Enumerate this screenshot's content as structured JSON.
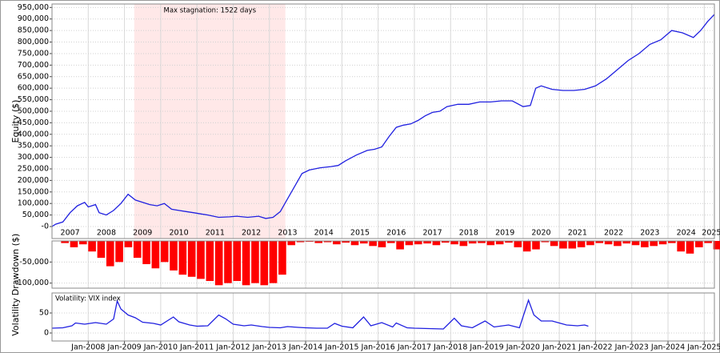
{
  "chart_data": [
    {
      "type": "line",
      "y_label": "Equity ($)",
      "annotation": "Max stagnation: 1522 days",
      "highlight_x": [
        2009.27,
        2013.44
      ],
      "highlight_color": "#ffe8e8",
      "color": "#2020e0",
      "x": [
        2007.0,
        2007.1,
        2007.3,
        2007.5,
        2007.7,
        2007.9,
        2008.0,
        2008.2,
        2008.3,
        2008.5,
        2008.7,
        2008.9,
        2009.1,
        2009.3,
        2009.5,
        2009.7,
        2009.9,
        2010.1,
        2010.3,
        2010.5,
        2010.7,
        2010.9,
        2011.1,
        2011.3,
        2011.6,
        2011.9,
        2012.1,
        2012.4,
        2012.7,
        2012.9,
        2013.1,
        2013.3,
        2013.5,
        2013.7,
        2013.9,
        2014.1,
        2014.4,
        2014.7,
        2014.9,
        2015.1,
        2015.4,
        2015.7,
        2015.9,
        2016.1,
        2016.3,
        2016.5,
        2016.7,
        2016.9,
        2017.1,
        2017.3,
        2017.5,
        2017.7,
        2017.9,
        2018.2,
        2018.5,
        2018.8,
        2019.1,
        2019.4,
        2019.7,
        2020.0,
        2020.2,
        2020.35,
        2020.5,
        2020.8,
        2021.1,
        2021.4,
        2021.7,
        2022.0,
        2022.3,
        2022.6,
        2022.9,
        2023.2,
        2023.5,
        2023.8,
        2024.1,
        2024.4,
        2024.7,
        2024.9,
        2025.1,
        2025.28
      ],
      "values": [
        0,
        10000,
        20000,
        60000,
        90000,
        105000,
        85000,
        95000,
        60000,
        50000,
        70000,
        100000,
        140000,
        115000,
        105000,
        95000,
        90000,
        100000,
        75000,
        70000,
        65000,
        60000,
        55000,
        50000,
        40000,
        42000,
        45000,
        40000,
        45000,
        35000,
        40000,
        65000,
        120000,
        175000,
        230000,
        245000,
        255000,
        260000,
        265000,
        285000,
        310000,
        330000,
        335000,
        345000,
        390000,
        430000,
        440000,
        445000,
        460000,
        480000,
        495000,
        500000,
        520000,
        530000,
        530000,
        540000,
        540000,
        545000,
        545000,
        520000,
        525000,
        600000,
        610000,
        595000,
        590000,
        590000,
        595000,
        610000,
        640000,
        680000,
        720000,
        750000,
        790000,
        810000,
        850000,
        840000,
        820000,
        850000,
        890000,
        920000
      ],
      "xlim": [
        2007.0,
        2025.28
      ],
      "ylim": [
        -52000,
        965000
      ],
      "xticks": [
        {
          "value": 2007.5,
          "label": "2007"
        },
        {
          "value": 2008.5,
          "label": "2008"
        },
        {
          "value": 2009.5,
          "label": "2009"
        },
        {
          "value": 2010.5,
          "label": "2010"
        },
        {
          "value": 2011.5,
          "label": "2011"
        },
        {
          "value": 2012.5,
          "label": "2012"
        },
        {
          "value": 2013.5,
          "label": "2013"
        },
        {
          "value": 2014.5,
          "label": "2014"
        },
        {
          "value": 2015.5,
          "label": "2015"
        },
        {
          "value": 2016.5,
          "label": "2016"
        },
        {
          "value": 2017.5,
          "label": "2017"
        },
        {
          "value": 2018.5,
          "label": "2018"
        },
        {
          "value": 2019.5,
          "label": "2019"
        },
        {
          "value": 2020.5,
          "label": "2020"
        },
        {
          "value": 2021.5,
          "label": "2021"
        },
        {
          "value": 2022.5,
          "label": "2022"
        },
        {
          "value": 2023.5,
          "label": "2023"
        },
        {
          "value": 2024.5,
          "label": "2024"
        },
        {
          "value": 2025.2,
          "label": "2025"
        }
      ],
      "yticks": [
        {
          "value": 0,
          "label": "-0"
        },
        {
          "value": 50000,
          "label": "50,000"
        },
        {
          "value": 100000,
          "label": "100,000"
        },
        {
          "value": 150000,
          "label": "150,000"
        },
        {
          "value": 200000,
          "label": "200,000"
        },
        {
          "value": 250000,
          "label": "250,000"
        },
        {
          "value": 300000,
          "label": "300,000"
        },
        {
          "value": 350000,
          "label": "350,000"
        },
        {
          "value": 400000,
          "label": "400,000"
        },
        {
          "value": 450000,
          "label": "450,000"
        },
        {
          "value": 500000,
          "label": "500,000"
        },
        {
          "value": 550000,
          "label": "550,000"
        },
        {
          "value": 600000,
          "label": "600,000"
        },
        {
          "value": 650000,
          "label": "650,000"
        },
        {
          "value": 700000,
          "label": "700,000"
        },
        {
          "value": 750000,
          "label": "750,000"
        },
        {
          "value": 800000,
          "label": "800,000"
        },
        {
          "value": 850000,
          "label": "850,000"
        },
        {
          "value": 900000,
          "label": "900,000"
        },
        {
          "value": 950000,
          "label": "950,000"
        }
      ]
    },
    {
      "type": "bar",
      "y_label": "Drawdown ($)",
      "color": "#ff0000",
      "x": [
        2007.0,
        2007.25,
        2007.5,
        2007.75,
        2008.0,
        2008.25,
        2008.5,
        2008.75,
        2009.0,
        2009.25,
        2009.5,
        2009.75,
        2010.0,
        2010.25,
        2010.5,
        2010.75,
        2011.0,
        2011.25,
        2011.5,
        2011.75,
        2012.0,
        2012.25,
        2012.5,
        2012.75,
        2013.0,
        2013.25,
        2013.5,
        2013.75,
        2014.0,
        2014.25,
        2014.5,
        2014.75,
        2015.0,
        2015.25,
        2015.5,
        2015.75,
        2016.0,
        2016.25,
        2016.5,
        2016.75,
        2017.0,
        2017.25,
        2017.5,
        2017.75,
        2018.0,
        2018.25,
        2018.5,
        2018.75,
        2019.0,
        2019.25,
        2019.5,
        2019.75,
        2020.0,
        2020.25,
        2020.5,
        2020.75,
        2021.0,
        2021.25,
        2021.5,
        2021.75,
        2022.0,
        2022.25,
        2022.5,
        2022.75,
        2023.0,
        2023.25,
        2023.5,
        2023.75,
        2024.0,
        2024.25,
        2024.5,
        2024.75,
        2025.0,
        2025.25
      ],
      "values": [
        0,
        -5000,
        -15000,
        -8000,
        -25000,
        -40000,
        -60000,
        -50000,
        -15000,
        -40000,
        -55000,
        -65000,
        -50000,
        -70000,
        -80000,
        -85000,
        -90000,
        -95000,
        -105000,
        -100000,
        -95000,
        -105000,
        -100000,
        -105000,
        -100000,
        -80000,
        -10000,
        -3000,
        -2000,
        -5000,
        -3000,
        -8000,
        -4000,
        -10000,
        -6000,
        -12000,
        -15000,
        -5000,
        -20000,
        -10000,
        -8000,
        -6000,
        -10000,
        -4000,
        -8000,
        -12000,
        -6000,
        -5000,
        -10000,
        -8000,
        -4000,
        -15000,
        -25000,
        -20000,
        -3000,
        -12000,
        -18000,
        -18000,
        -15000,
        -10000,
        -5000,
        -8000,
        -12000,
        -6000,
        -10000,
        -15000,
        -12000,
        -8000,
        -5000,
        -25000,
        -30000,
        -15000,
        -5000,
        -20000
      ],
      "xlim": [
        2007.0,
        2025.28
      ],
      "ylim": [
        -112000,
        0
      ],
      "yticks": [
        {
          "value": -50000,
          "label": "-50,000"
        },
        {
          "value": -100000,
          "label": "-100,000"
        }
      ]
    },
    {
      "type": "line",
      "y_label": "Volatility",
      "annotation": "Volatility: VIX index",
      "color": "#2020e0",
      "x": [
        2007.0,
        2007.3,
        2007.55,
        2007.65,
        2007.9,
        2008.2,
        2008.5,
        2008.7,
        2008.8,
        2008.9,
        2009.1,
        2009.3,
        2009.5,
        2009.8,
        2010.0,
        2010.35,
        2010.5,
        2010.8,
        2011.0,
        2011.3,
        2011.6,
        2011.8,
        2012.0,
        2012.3,
        2012.5,
        2012.8,
        2013.0,
        2013.3,
        2013.5,
        2013.8,
        2014.0,
        2014.3,
        2014.6,
        2014.8,
        2015.0,
        2015.3,
        2015.6,
        2015.8,
        2016.1,
        2016.4,
        2016.5,
        2016.8,
        2017.0,
        2017.4,
        2017.8,
        2018.1,
        2018.3,
        2018.6,
        2018.95,
        2019.2,
        2019.6,
        2019.9,
        2020.15,
        2020.3,
        2020.5,
        2020.8,
        2021.0,
        2021.2,
        2021.5,
        2021.7,
        2021.8
      ],
      "values": [
        12,
        13,
        18,
        25,
        22,
        26,
        22,
        35,
        80,
        60,
        45,
        38,
        27,
        24,
        20,
        40,
        28,
        20,
        17,
        18,
        45,
        35,
        22,
        18,
        20,
        16,
        14,
        13,
        16,
        14,
        13,
        12,
        12,
        24,
        17,
        13,
        40,
        18,
        26,
        15,
        25,
        13,
        12,
        11,
        10,
        37,
        18,
        13,
        30,
        15,
        20,
        13,
        82,
        45,
        30,
        30,
        25,
        20,
        18,
        20,
        17
      ],
      "xlim": [
        2007.0,
        2025.28
      ],
      "ylim": [
        -20,
        100
      ],
      "yticks": [
        0,
        50
      ],
      "xticks": [
        {
          "value": 2008,
          "label": "Jan-2008"
        },
        {
          "value": 2009,
          "label": "Jan-2009"
        },
        {
          "value": 2010,
          "label": "Jan-2010"
        },
        {
          "value": 2011,
          "label": "Jan-2011"
        },
        {
          "value": 2012,
          "label": "Jan-2012"
        },
        {
          "value": 2013,
          "label": "Jan-2013"
        },
        {
          "value": 2014,
          "label": "Jan-2014"
        },
        {
          "value": 2015,
          "label": "Jan-2015"
        },
        {
          "value": 2016,
          "label": "Jan-2016"
        },
        {
          "value": 2017,
          "label": "Jan-2017"
        },
        {
          "value": 2018,
          "label": "Jan-2018"
        },
        {
          "value": 2019,
          "label": "Jan-2019"
        },
        {
          "value": 2020,
          "label": "Jan-2020"
        },
        {
          "value": 2021,
          "label": "Jan-2021"
        },
        {
          "value": 2022,
          "label": "Jan-2022"
        },
        {
          "value": 2023,
          "label": "Jan-2023"
        },
        {
          "value": 2024,
          "label": "Jan-2024"
        },
        {
          "value": 2025,
          "label": "Jan-2025"
        }
      ]
    }
  ]
}
